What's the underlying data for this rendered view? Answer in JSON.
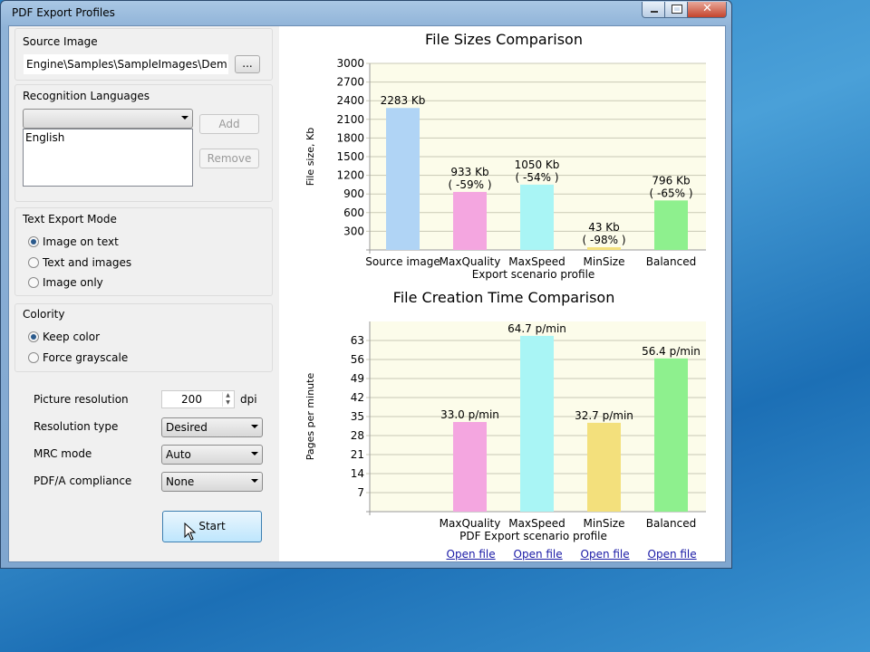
{
  "window": {
    "title": "PDF Export Profiles"
  },
  "source_image": {
    "label": "Source Image",
    "path": "Engine\\Samples\\SampleImages\\Demo.tif",
    "browse_label": "..."
  },
  "languages": {
    "label": "Recognition Languages",
    "combo_value": "",
    "items": [
      "English"
    ],
    "add_label": "Add",
    "remove_label": "Remove"
  },
  "text_export_mode": {
    "label": "Text Export Mode",
    "options": [
      {
        "label": "Image on text",
        "selected": true
      },
      {
        "label": "Text and images",
        "selected": false
      },
      {
        "label": "Image only",
        "selected": false
      }
    ]
  },
  "colority": {
    "label": "Colority",
    "options": [
      {
        "label": "Keep color",
        "selected": true
      },
      {
        "label": "Force grayscale",
        "selected": false
      }
    ]
  },
  "settings": {
    "picture_resolution_label": "Picture resolution",
    "picture_resolution_value": "200",
    "dpi_label": "dpi",
    "resolution_type_label": "Resolution type",
    "resolution_type_value": "Desired",
    "mrc_mode_label": "MRC mode",
    "mrc_mode_value": "Auto",
    "pdfa_label": "PDF/A compliance",
    "pdfa_value": "None"
  },
  "start_label": "Start",
  "open_file_links": [
    "Open file",
    "Open file",
    "Open file",
    "Open file"
  ],
  "chart_data": [
    {
      "type": "bar",
      "title": "File Sizes Comparison",
      "xlabel": "Export scenario profile",
      "ylabel": "File size, Kb",
      "ylim": [
        0,
        3000
      ],
      "yticks": [
        300,
        600,
        900,
        1200,
        1500,
        1800,
        2100,
        2400,
        2700,
        3000
      ],
      "grid": true,
      "categories": [
        "Source image",
        "MaxQuality",
        "MaxSpeed",
        "MinSize",
        "Balanced"
      ],
      "values": [
        2283,
        933,
        1050,
        43,
        796
      ],
      "data_labels": [
        [
          "2283 Kb"
        ],
        [
          "933 Kb",
          "( -59% )"
        ],
        [
          "1050 Kb",
          "( -54% )"
        ],
        [
          "43 Kb",
          "( -98% )"
        ],
        [
          "796 Kb",
          "( -65% )"
        ]
      ],
      "colors": [
        "#b0d4f5",
        "#f4a6e0",
        "#a9f5f5",
        "#f3e07c",
        "#8ef08e"
      ]
    },
    {
      "type": "bar",
      "title": "File Creation Time Comparison",
      "xlabel": "PDF Export scenario profile",
      "ylabel": "Pages per minute",
      "ylim": [
        0,
        70
      ],
      "yticks": [
        7,
        14,
        21,
        28,
        35,
        42,
        49,
        56,
        63
      ],
      "grid": true,
      "categories": [
        "",
        "MaxQuality",
        "MaxSpeed",
        "MinSize",
        "Balanced"
      ],
      "values": [
        null,
        33.0,
        64.7,
        32.7,
        56.4
      ],
      "data_labels": [
        [],
        [
          "33.0 p/min"
        ],
        [
          "64.7 p/min"
        ],
        [
          "32.7 p/min"
        ],
        [
          "56.4 p/min"
        ]
      ],
      "colors": [
        "#b0d4f5",
        "#f4a6e0",
        "#a9f5f5",
        "#f3e07c",
        "#8ef08e"
      ]
    }
  ]
}
